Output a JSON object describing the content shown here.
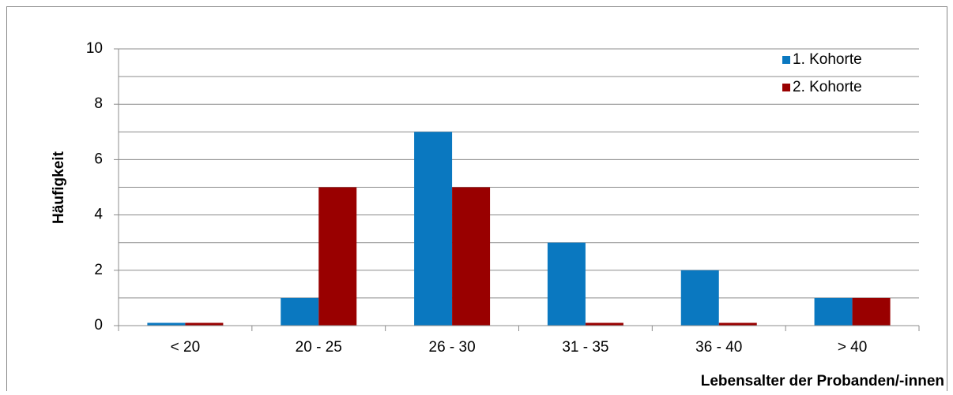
{
  "chart_data": {
    "type": "bar",
    "categories": [
      "< 20",
      "20 - 25",
      "26 - 30",
      "31 - 35",
      "36 - 40",
      "> 40"
    ],
    "series": [
      {
        "name": "1. Kohorte",
        "color": "#0a78c0",
        "values": [
          0.1,
          1,
          7,
          3,
          2,
          1
        ]
      },
      {
        "name": "2. Kohorte",
        "color": "#990000",
        "values": [
          0.1,
          5,
          5,
          0.1,
          0.1,
          1
        ]
      }
    ],
    "ylabel": "Häufigkeit",
    "xlabel": "Lebensalter der Probanden/-innen",
    "ylim": [
      0,
      10
    ],
    "yticks": [
      0,
      2,
      4,
      6,
      8,
      10
    ],
    "minor_gridlines": [
      1,
      3,
      5,
      7,
      9
    ],
    "grid": true,
    "legend": "top-right"
  }
}
